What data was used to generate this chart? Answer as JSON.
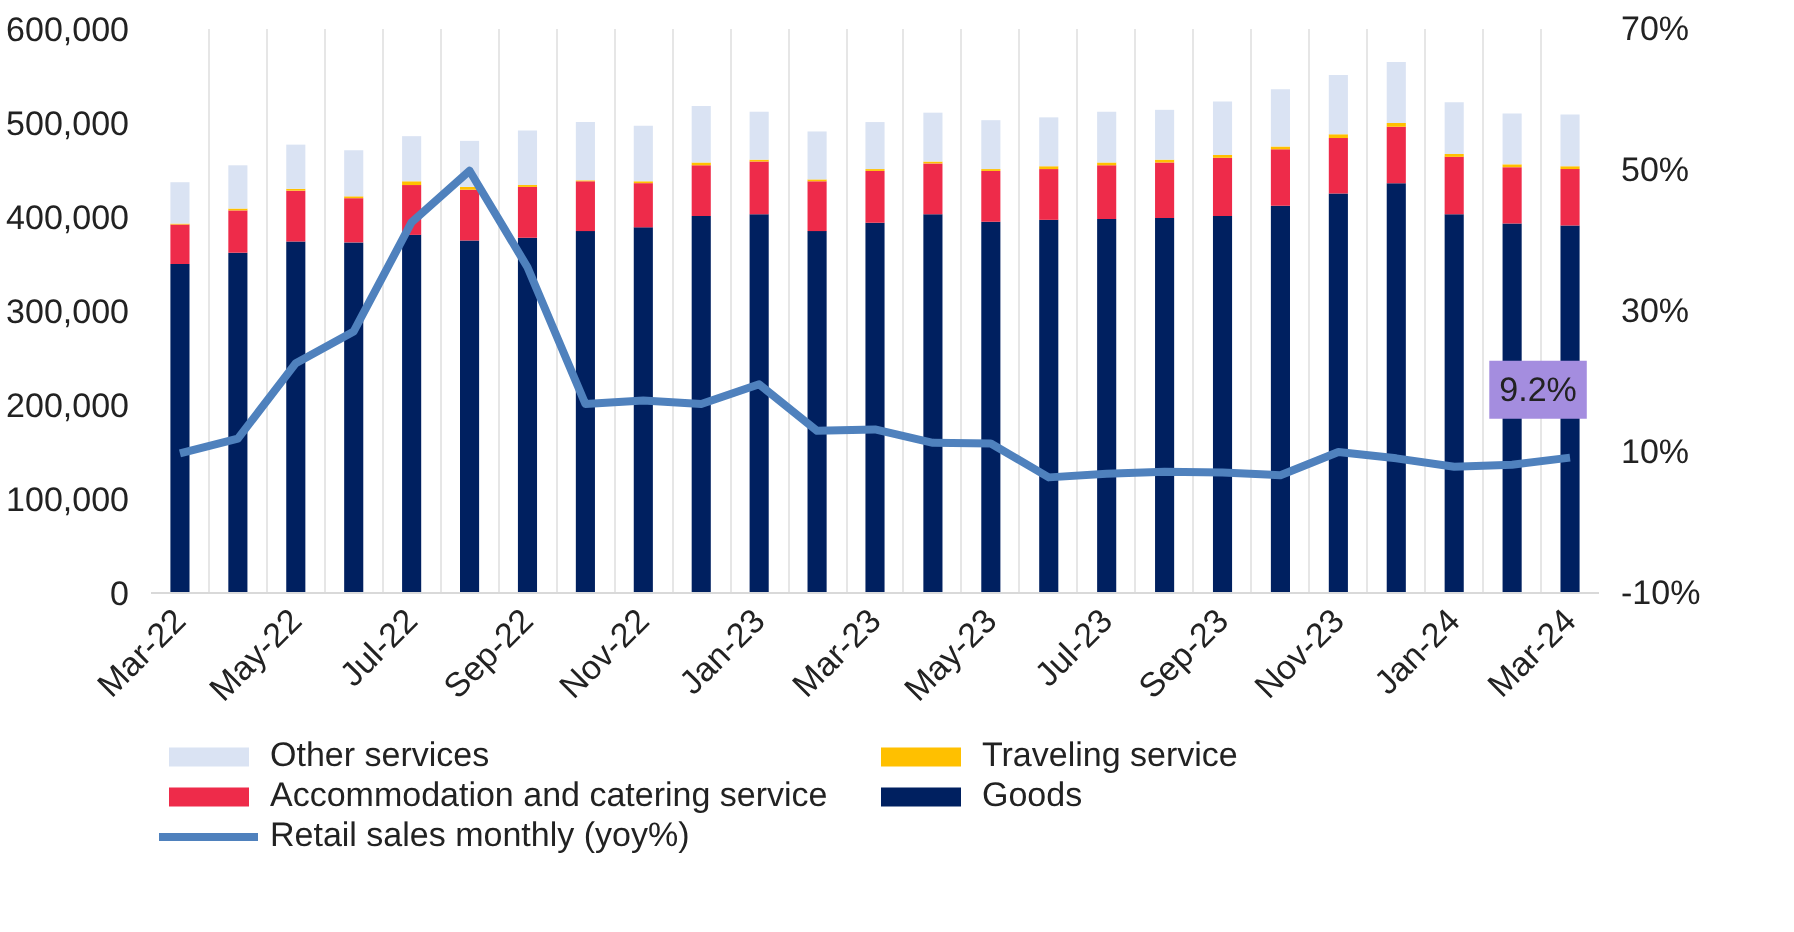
{
  "chart_data": {
    "type": "bar",
    "stacked": true,
    "categories": [
      "Mar-22",
      null,
      "May-22",
      null,
      "Jul-22",
      null,
      "Sep-22",
      null,
      "Nov-22",
      null,
      "Jan-23",
      null,
      "Mar-23",
      null,
      "May-23",
      null,
      "Jul-23",
      null,
      "Sep-23",
      null,
      "Nov-23",
      null,
      "Jan-24",
      null,
      "Mar-24"
    ],
    "series": [
      {
        "name": "Goods",
        "color": "#002060",
        "values": [
          350000,
          362000,
          374000,
          373000,
          381000,
          375000,
          378000,
          385000,
          389000,
          401000,
          403000,
          385000,
          394000,
          403000,
          395000,
          397000,
          398000,
          399000,
          401000,
          412000,
          425000,
          436000,
          403000,
          393000,
          391000
        ]
      },
      {
        "name": "Accommodation and catering service",
        "color": "#ee2b4a",
        "values": [
          42000,
          45000,
          54000,
          47000,
          53000,
          54000,
          54000,
          53000,
          47000,
          54000,
          56000,
          53000,
          55000,
          54000,
          54000,
          54000,
          57000,
          59000,
          62000,
          60000,
          59000,
          60000,
          61000,
          60000,
          60000
        ]
      },
      {
        "name": "Traveling service",
        "color": "#ffc000",
        "values": [
          1000,
          2000,
          2000,
          2000,
          4000,
          3000,
          2000,
          1000,
          2000,
          3000,
          2000,
          2000,
          2000,
          2000,
          2000,
          3000,
          3000,
          3000,
          3000,
          3000,
          4000,
          4000,
          3000,
          3000,
          3000
        ]
      },
      {
        "name": "Other services",
        "color": "#dae3f3",
        "values": [
          44000,
          46000,
          47000,
          49000,
          48000,
          49000,
          58000,
          62000,
          59000,
          60000,
          51000,
          51000,
          50000,
          52000,
          52000,
          52000,
          54000,
          53000,
          57000,
          61000,
          63000,
          65000,
          55000,
          54000,
          55000
        ]
      },
      {
        "name": "Retail sales monthly (yoy%)",
        "type": "line",
        "axis": "y2",
        "color": "#4f81bd",
        "values": [
          9.8,
          11.9,
          22.6,
          27.1,
          42.6,
          49.9,
          36.2,
          16.8,
          17.3,
          16.8,
          19.6,
          13.0,
          13.2,
          11.3,
          11.2,
          6.4,
          6.9,
          7.2,
          7.1,
          6.7,
          10.0,
          9.1,
          7.9,
          8.2,
          9.2
        ],
        "value_labels": [
          null,
          null,
          null,
          null,
          null,
          null,
          null,
          null,
          null,
          null,
          null,
          null,
          null,
          null,
          null,
          null,
          null,
          null,
          null,
          null,
          null,
          null,
          null,
          null,
          "9.2%"
        ]
      }
    ],
    "ylim": [
      0,
      600000
    ],
    "yticks": [
      {
        "value": 0,
        "label": "0"
      },
      {
        "value": 100000,
        "label": "100,000"
      },
      {
        "value": 200000,
        "label": "200,000"
      },
      {
        "value": 300000,
        "label": "300,000"
      },
      {
        "value": 400000,
        "label": "400,000"
      },
      {
        "value": 500000,
        "label": "500,000"
      },
      {
        "value": 600000,
        "label": "600,000"
      }
    ],
    "y2lim": [
      -10,
      70
    ],
    "y2ticks": [
      {
        "value": -10,
        "label": "-10%"
      },
      {
        "value": 10,
        "label": "10%"
      },
      {
        "value": 30,
        "label": "30%"
      },
      {
        "value": 50,
        "label": "50%"
      },
      {
        "value": 70,
        "label": "70%"
      }
    ],
    "grid": "x",
    "legend": "bottom"
  }
}
